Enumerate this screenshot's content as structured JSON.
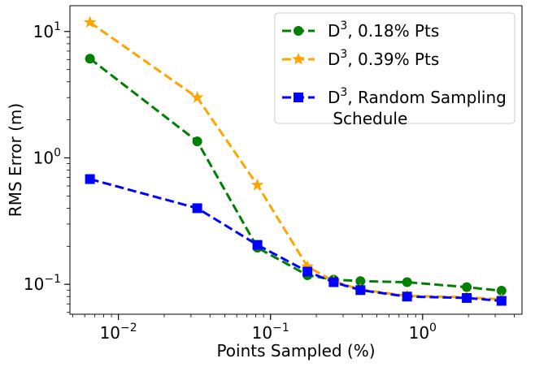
{
  "chart_data": {
    "type": "line",
    "xlabel": "Points Sampled (%)",
    "ylabel": "RMS Error (m)",
    "x_scale": "log",
    "y_scale": "log",
    "xlim": [
      0.0048,
      4.5
    ],
    "ylim": [
      0.058,
      16
    ],
    "grid": false,
    "legend_position": "top-right",
    "x_ticks": [
      {
        "base": "10",
        "exp": "−2",
        "value": 0.01
      },
      {
        "base": "10",
        "exp": "−1",
        "value": 0.1
      },
      {
        "base": "10",
        "exp": "0",
        "value": 1
      }
    ],
    "y_ticks": [
      {
        "base": "10",
        "exp": "−1",
        "value": 0.1
      },
      {
        "base": "10",
        "exp": "0",
        "value": 1
      },
      {
        "base": "10",
        "exp": "1",
        "value": 10
      }
    ],
    "series": [
      {
        "name_main": "D",
        "name_sup": "3",
        "name_rest": ", 0.18% Pts",
        "color": "#008000",
        "marker": "circle",
        "x": [
          0.0065,
          0.033,
          0.082,
          0.175,
          0.26,
          0.39,
          0.79,
          1.95,
          3.3
        ],
        "y": [
          6.1,
          1.35,
          0.195,
          0.118,
          0.109,
          0.106,
          0.104,
          0.095,
          0.089
        ]
      },
      {
        "name_main": "D",
        "name_sup": "3",
        "name_rest": ", 0.39% Pts",
        "color": "#ffa500",
        "marker": "star",
        "x": [
          0.0065,
          0.033,
          0.082,
          0.175,
          0.26,
          0.39,
          0.79,
          1.95,
          3.3
        ],
        "y": [
          11.8,
          3.0,
          0.61,
          0.138,
          0.106,
          0.091,
          0.081,
          0.079,
          0.076
        ]
      },
      {
        "name_main": "D",
        "name_sup": "3",
        "name_rest": ", Random Sampling",
        "name_line2": " Schedule",
        "color": "#0000ff",
        "marker": "square",
        "x": [
          0.0065,
          0.033,
          0.082,
          0.175,
          0.26,
          0.39,
          0.79,
          1.95,
          3.3
        ],
        "y": [
          0.68,
          0.4,
          0.205,
          0.126,
          0.104,
          0.09,
          0.08,
          0.078,
          0.074
        ]
      }
    ]
  }
}
